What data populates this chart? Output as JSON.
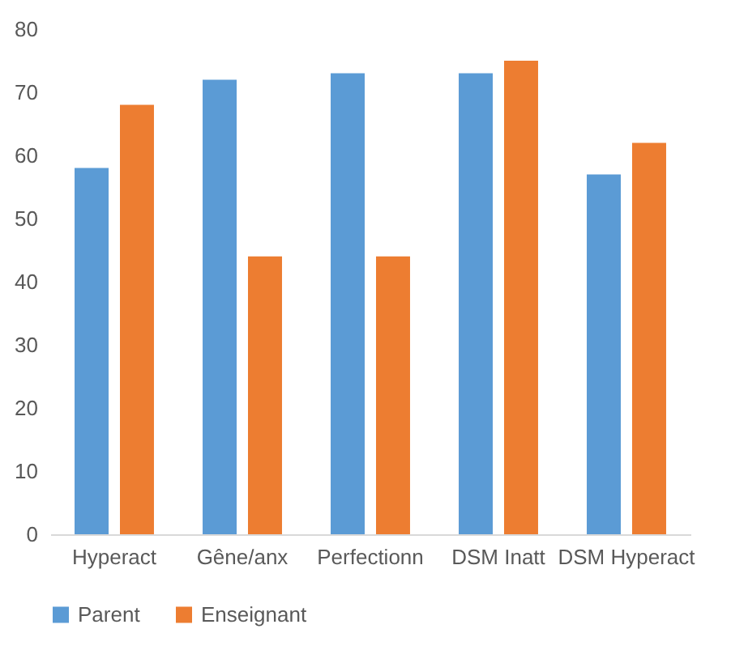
{
  "chart_data": {
    "type": "bar",
    "categories": [
      "Hyperact",
      "Gêne/anx",
      "Perfectionn",
      "DSM Inatt",
      "DSM Hyperact"
    ],
    "series": [
      {
        "name": "Parent",
        "color": "#5b9bd5",
        "values": [
          58,
          72,
          73,
          73,
          57
        ]
      },
      {
        "name": "Enseignant",
        "color": "#ed7d31",
        "values": [
          68,
          44,
          44,
          75,
          62
        ]
      }
    ],
    "ylim": [
      0,
      80
    ],
    "yticks": [
      0,
      10,
      20,
      30,
      40,
      50,
      60,
      70,
      80
    ],
    "grid": false,
    "legend": "bottom"
  }
}
